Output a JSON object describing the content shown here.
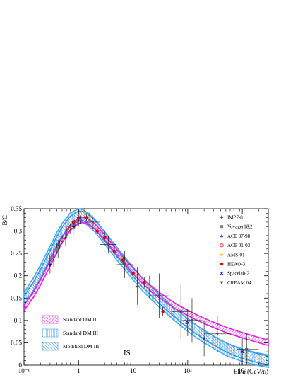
{
  "chart_data": {
    "type": "line",
    "ylabel": "B/C",
    "xlabel": "Ek/n (GeV/n)",
    "xscale": "log",
    "xlim": [
      0.1,
      3000
    ],
    "ylim": [
      0,
      0.35
    ],
    "x_tick_labels": [
      "10⁻¹",
      "1",
      "10",
      "10²",
      "10³"
    ],
    "y_tick_labels": [
      "0",
      "0.05",
      "0.1",
      "0.15",
      "0.2",
      "0.25",
      "0.3",
      "0.35"
    ],
    "annotation": "IS",
    "band_series": [
      {
        "name": "Standard DM II",
        "color": "#e020e0",
        "hatch": "diagonal-down",
        "x": [
          0.1,
          0.15,
          0.2,
          0.3,
          0.4,
          0.5,
          0.7,
          1.0,
          1.2,
          1.5,
          2,
          3,
          5,
          7,
          10,
          15,
          20,
          30,
          50,
          70,
          100,
          150,
          200,
          300,
          500,
          700,
          1000,
          2000,
          3000
        ],
        "y": [
          0.128,
          0.158,
          0.185,
          0.227,
          0.258,
          0.28,
          0.307,
          0.323,
          0.325,
          0.321,
          0.31,
          0.286,
          0.253,
          0.233,
          0.211,
          0.188,
          0.174,
          0.157,
          0.138,
          0.127,
          0.117,
          0.106,
          0.099,
          0.09,
          0.079,
          0.073,
          0.067,
          0.056,
          0.05
        ],
        "width": 0.006
      },
      {
        "name": "Standard DM III",
        "color": "#4aa8f0",
        "hatch": "vertical",
        "x": [
          0.1,
          0.15,
          0.2,
          0.3,
          0.4,
          0.5,
          0.7,
          1.0,
          1.2,
          1.5,
          2,
          3,
          5,
          7,
          10,
          15,
          20,
          30,
          50,
          70,
          100,
          150,
          200,
          300,
          500,
          700,
          1000,
          2000,
          3000
        ],
        "y": [
          0.148,
          0.182,
          0.21,
          0.252,
          0.283,
          0.303,
          0.326,
          0.336,
          0.334,
          0.326,
          0.312,
          0.285,
          0.25,
          0.228,
          0.205,
          0.18,
          0.165,
          0.144,
          0.12,
          0.105,
          0.09,
          0.074,
          0.064,
          0.051,
          0.036,
          0.029,
          0.022,
          0.013,
          0.009
        ],
        "width": 0.014
      },
      {
        "name": "Modified DM III",
        "color": "#3a8fd8",
        "hatch": "diagonal-up",
        "x": [
          0.1,
          0.15,
          0.2,
          0.3,
          0.4,
          0.5,
          0.7,
          1.0,
          1.2,
          1.5,
          2,
          3,
          5,
          7,
          10,
          15,
          20,
          30,
          50,
          70,
          100,
          150,
          200,
          300,
          500,
          700,
          1000,
          2000,
          3000
        ],
        "y": [
          0.144,
          0.177,
          0.204,
          0.247,
          0.278,
          0.299,
          0.323,
          0.335,
          0.334,
          0.327,
          0.314,
          0.288,
          0.254,
          0.232,
          0.209,
          0.184,
          0.169,
          0.148,
          0.124,
          0.109,
          0.094,
          0.078,
          0.068,
          0.055,
          0.04,
          0.032,
          0.025,
          0.015,
          0.011
        ],
        "width": 0.01
      }
    ],
    "data_series": [
      {
        "name": "IMP7-8",
        "marker": "plus",
        "color": "#000000",
        "points": [
          {
            "x": 0.3,
            "y": 0.225,
            "yerr": 0.02
          },
          {
            "x": 0.35,
            "y": 0.24,
            "yerr": 0.02
          },
          {
            "x": 0.42,
            "y": 0.26,
            "yerr": 0.02
          },
          {
            "x": 0.58,
            "y": 0.285,
            "yerr": 0.018
          },
          {
            "x": 0.8,
            "y": 0.31,
            "yerr": 0.018
          }
        ]
      },
      {
        "name": "Voyager1&2",
        "marker": "square",
        "color": "#808080",
        "points": [
          {
            "x": 0.32,
            "y": 0.24,
            "yerr": 0.012
          },
          {
            "x": 0.4,
            "y": 0.26,
            "yerr": 0.012
          },
          {
            "x": 0.6,
            "y": 0.3,
            "yerr": 0.012
          },
          {
            "x": 0.8,
            "y": 0.315,
            "yerr": 0.012
          }
        ]
      },
      {
        "name": "ACE 97-98",
        "marker": "triangle-up",
        "color": "#5a4ad8",
        "points": [
          {
            "x": 0.45,
            "y": 0.27,
            "yerr": 0.01
          },
          {
            "x": 0.6,
            "y": 0.295,
            "yerr": 0.01
          },
          {
            "x": 0.85,
            "y": 0.315,
            "yerr": 0.01
          },
          {
            "x": 1.1,
            "y": 0.325,
            "yerr": 0.01
          }
        ]
      },
      {
        "name": "ACE 01-03",
        "marker": "open-circle",
        "color": "#e02020",
        "points": [
          {
            "x": 0.5,
            "y": 0.28,
            "yerr": 0.01
          },
          {
            "x": 0.7,
            "y": 0.305,
            "yerr": 0.01
          },
          {
            "x": 1.0,
            "y": 0.32,
            "yerr": 0.01
          }
        ]
      },
      {
        "name": "AMS-01",
        "marker": "star",
        "color": "#f0c000",
        "points": [
          {
            "x": 1.3,
            "y": 0.34,
            "yerr": 0.012
          },
          {
            "x": 1.6,
            "y": 0.33,
            "yerr": 0.012
          },
          {
            "x": 3,
            "y": 0.29,
            "yerr": 0.012
          },
          {
            "x": 6,
            "y": 0.24,
            "yerr": 0.015
          },
          {
            "x": 12,
            "y": 0.2,
            "yerr": 0.02
          },
          {
            "x": 20,
            "y": 0.175,
            "yerr": 0.025
          }
        ]
      },
      {
        "name": "HEAO-3",
        "marker": "filled-circle",
        "color": "#e00000",
        "points": [
          {
            "x": 0.8,
            "y": 0.32,
            "yerr": 0.008
          },
          {
            "x": 1.0,
            "y": 0.33,
            "yerr": 0.008
          },
          {
            "x": 1.4,
            "y": 0.33,
            "yerr": 0.008
          },
          {
            "x": 2.2,
            "y": 0.3,
            "yerr": 0.008
          },
          {
            "x": 3.0,
            "y": 0.285,
            "yerr": 0.008
          },
          {
            "x": 4.5,
            "y": 0.255,
            "yerr": 0.008
          },
          {
            "x": 6.5,
            "y": 0.235,
            "yerr": 0.008
          },
          {
            "x": 10,
            "y": 0.205,
            "yerr": 0.01
          },
          {
            "x": 16,
            "y": 0.185,
            "yerr": 0.012
          },
          {
            "x": 35,
            "y": 0.12,
            "yerr": 0.01
          }
        ]
      },
      {
        "name": "Spacelab-2",
        "marker": "cross",
        "color": "#2020c0",
        "points": [
          {
            "x": 100,
            "y": 0.095,
            "yerr": 0.03
          },
          {
            "x": 200,
            "y": 0.06,
            "yerr": 0.04
          },
          {
            "x": 1000,
            "y": 0.03,
            "yerr": 0.03
          }
        ]
      },
      {
        "name": "CREAM 04",
        "marker": "triangle-down",
        "color": "#505050",
        "points": [
          {
            "x": 1.8,
            "y": 0.32,
            "yerr": 0.015,
            "xlo": 1.3,
            "xhi": 2.5
          },
          {
            "x": 3.5,
            "y": 0.27,
            "yerr": 0.02,
            "xlo": 2.5,
            "xhi": 5
          },
          {
            "x": 7,
            "y": 0.225,
            "yerr": 0.03,
            "xlo": 5,
            "xhi": 10
          },
          {
            "x": 12,
            "y": 0.175,
            "yerr": 0.04,
            "xlo": 10,
            "xhi": 18
          },
          {
            "x": 30,
            "y": 0.155,
            "yerr": 0.05,
            "xlo": 20,
            "xhi": 45
          },
          {
            "x": 75,
            "y": 0.12,
            "yerr": 0.06,
            "xlo": 50,
            "xhi": 110
          },
          {
            "x": 120,
            "y": 0.1,
            "yerr": 0.05,
            "xlo": 80,
            "xhi": 180
          },
          {
            "x": 350,
            "y": 0.07,
            "yerr": 0.04,
            "xlo": 200,
            "xhi": 600
          },
          {
            "x": 1200,
            "y": 0.035,
            "yerr": 0.035,
            "xlo": 800,
            "xhi": 2000
          }
        ]
      }
    ],
    "legend_placement": "top-right (points), bottom-left (bands)",
    "grid": false
  }
}
